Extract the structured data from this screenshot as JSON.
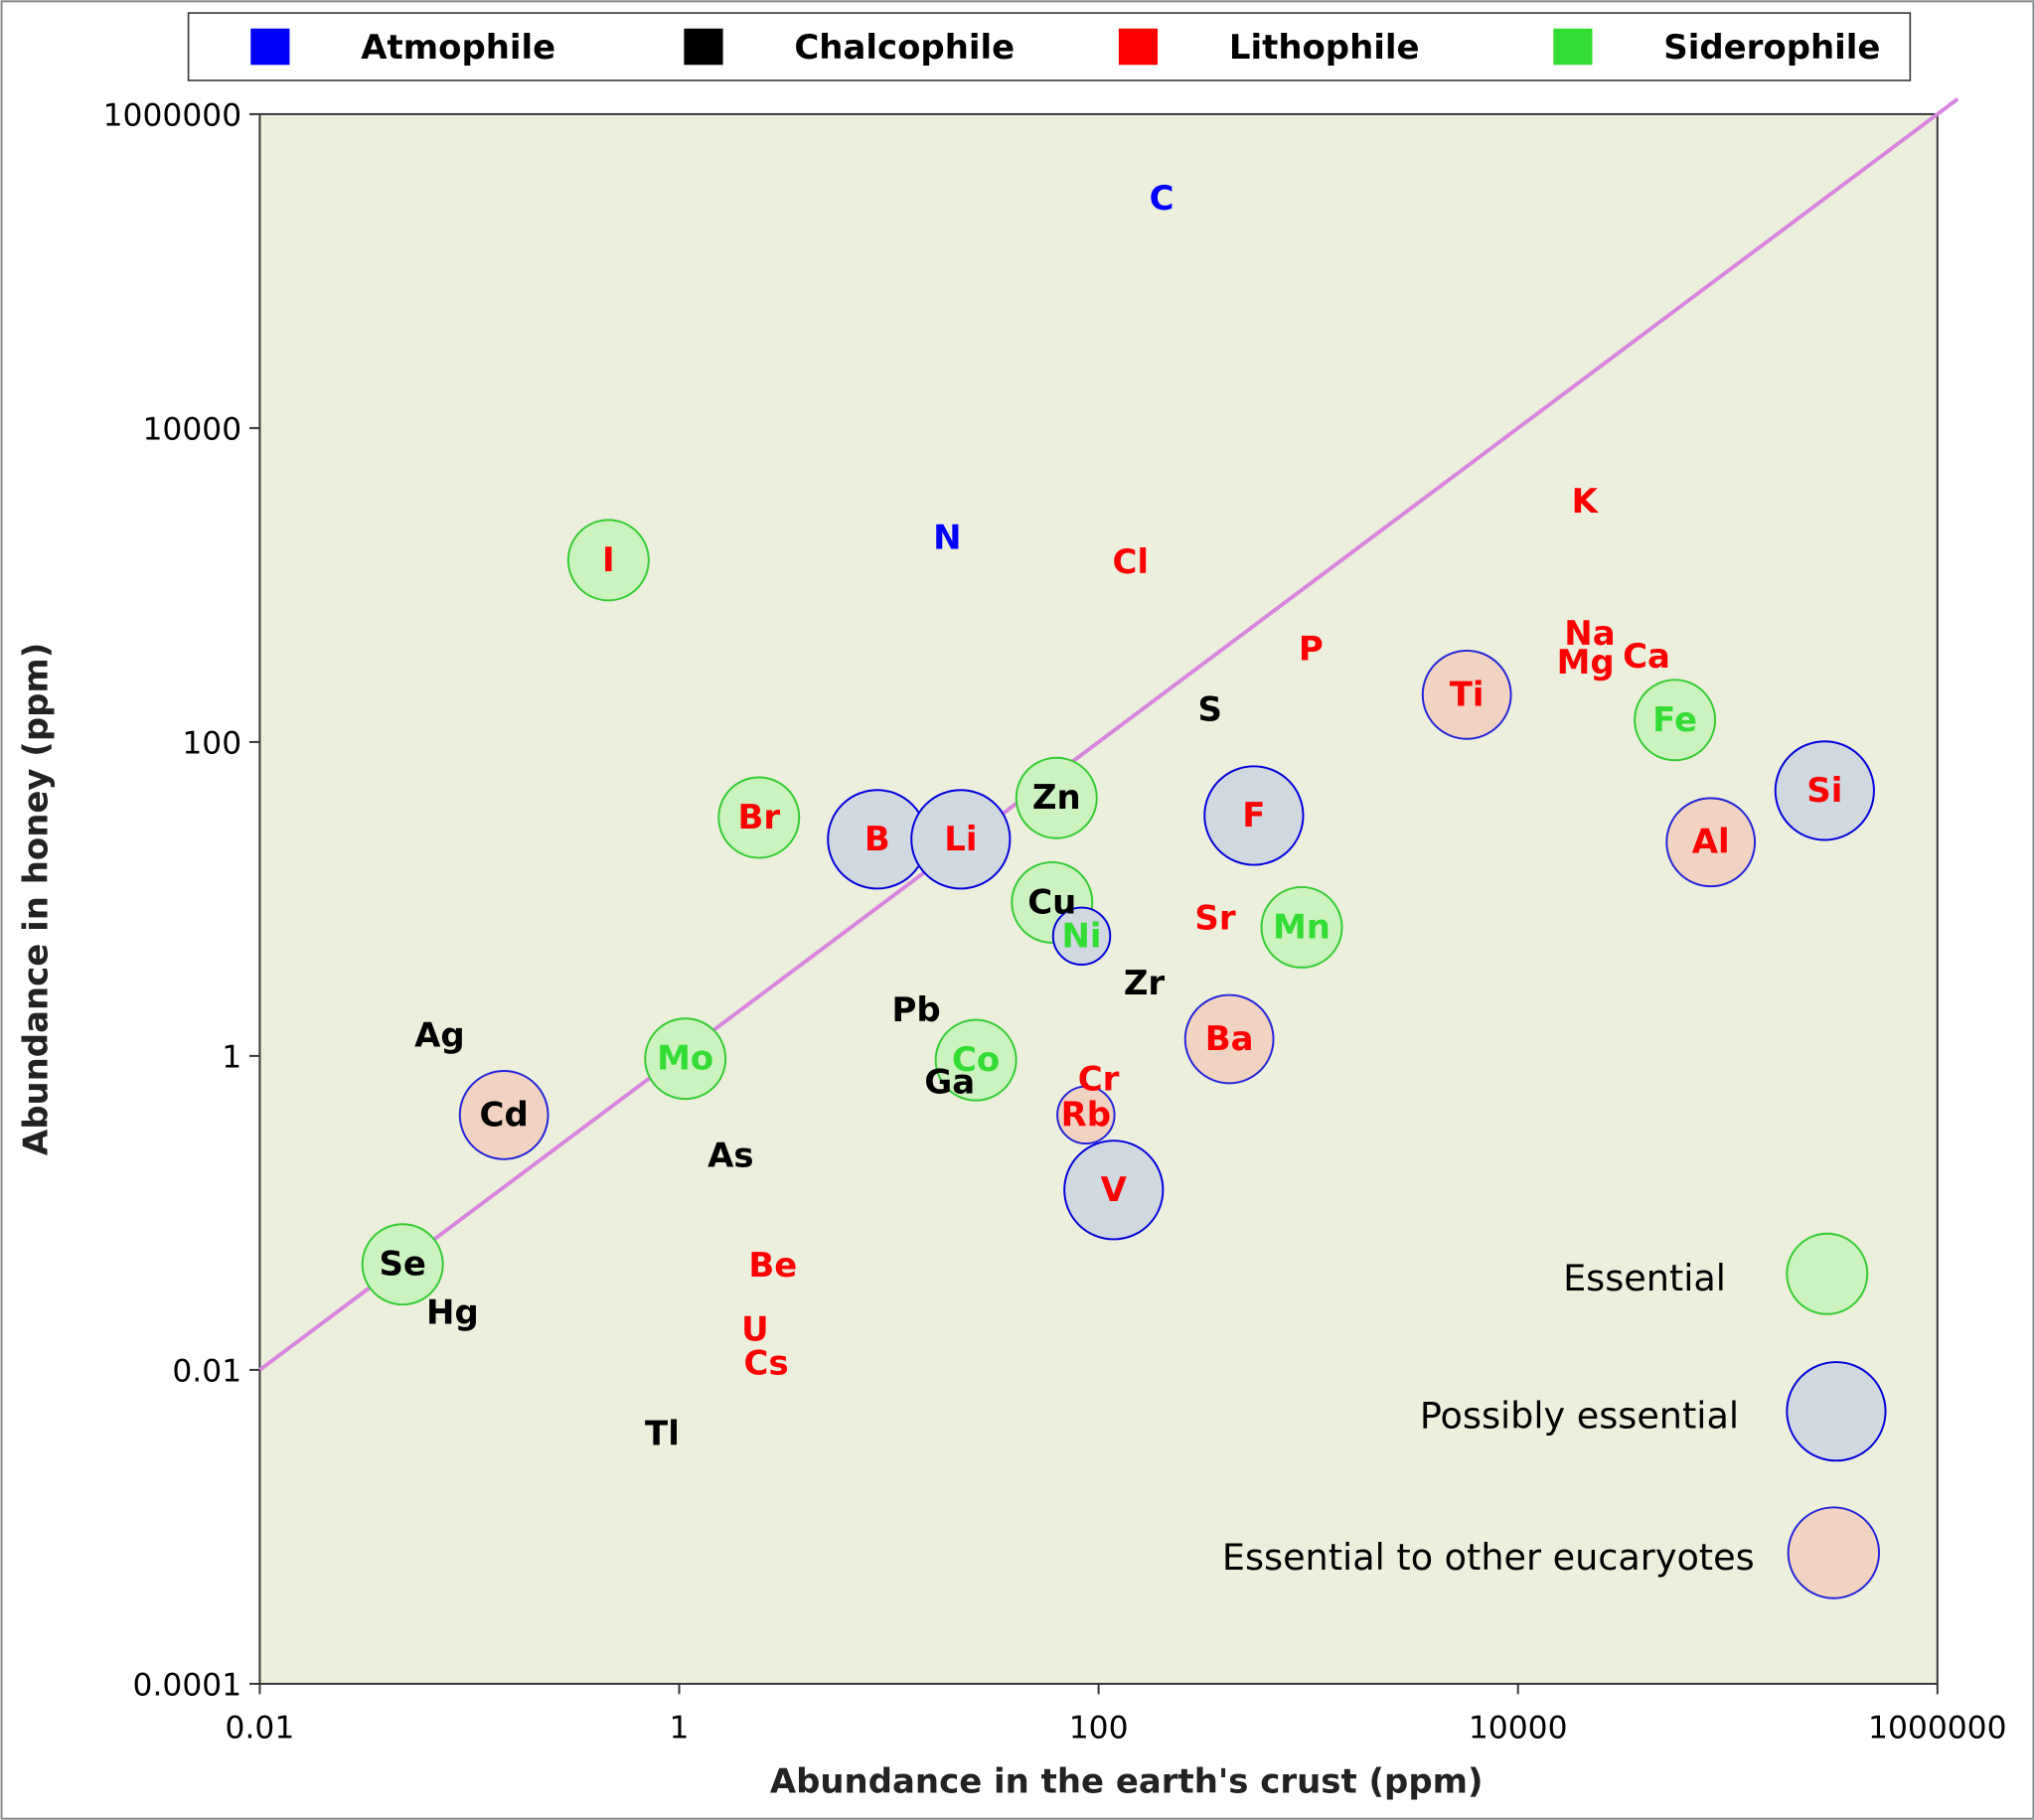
{
  "chart_data": {
    "type": "scatter",
    "xlabel": "Abundance in the earth's crust (ppm)",
    "ylabel": "Abundance in honey (ppm)",
    "x_scale": "log",
    "y_scale": "log",
    "xlim": [
      0.01,
      1000000
    ],
    "ylim": [
      0.0001,
      1000000
    ],
    "x_ticks": [
      "0.01",
      "1",
      "100",
      "10000",
      "1000000"
    ],
    "y_ticks": [
      "0.0001",
      "0.01",
      "1",
      "100",
      "10000",
      "1000000"
    ],
    "grid": false,
    "background_color": "#ecefdc",
    "reference_line": {
      "type": "y = x",
      "color": "#d985e0"
    },
    "groups_legend": {
      "placement": "top",
      "items": [
        {
          "name": "Atmophile",
          "color": "#0000ff"
        },
        {
          "name": "Chalcophile",
          "color": "#000000"
        },
        {
          "name": "Lithophile",
          "color": "#ff0000"
        },
        {
          "name": "Siderophile",
          "color": "#33dd33"
        }
      ]
    },
    "marker_legend": {
      "placement": "bottom-right",
      "items": [
        {
          "name": "Essential",
          "key": "essential",
          "fill": "#ccf2c0",
          "stroke": "#33cc33"
        },
        {
          "name": "Possibly essential",
          "key": "possibly",
          "fill": "#d0d8e0",
          "stroke": "#0000dd"
        },
        {
          "name": "Essential to other eucaryotes",
          "key": "other",
          "fill": "#f2d2c0",
          "stroke": "#2222dd"
        }
      ]
    },
    "points": [
      {
        "label": "C",
        "group": "Atmophile",
        "x": 200,
        "y": 290000,
        "marker": ""
      },
      {
        "label": "N",
        "group": "Atmophile",
        "x": 19,
        "y": 2000,
        "marker": ""
      },
      {
        "label": "Cl",
        "group": "Lithophile",
        "x": 142,
        "y": 1400,
        "marker": ""
      },
      {
        "label": "K",
        "group": "Lithophile",
        "x": 20800,
        "y": 3400,
        "marker": ""
      },
      {
        "label": "I",
        "group": "Lithophile",
        "x": 0.46,
        "y": 1440,
        "marker": "essential"
      },
      {
        "label": "P",
        "group": "Lithophile",
        "x": 1030,
        "y": 390,
        "marker": ""
      },
      {
        "label": "Na",
        "group": "Lithophile",
        "x": 22000,
        "y": 490,
        "marker": ""
      },
      {
        "label": "Mg",
        "group": "Lithophile",
        "x": 21000,
        "y": 320,
        "marker": ""
      },
      {
        "label": "Ca",
        "group": "Lithophile",
        "x": 41000,
        "y": 350,
        "marker": ""
      },
      {
        "label": "Ti",
        "group": "Lithophile",
        "x": 5700,
        "y": 200,
        "marker": "other"
      },
      {
        "label": "Fe",
        "group": "Siderophile",
        "x": 56000,
        "y": 138,
        "marker": "essential"
      },
      {
        "label": "S",
        "group": "Chalcophile",
        "x": 340,
        "y": 160,
        "marker": ""
      },
      {
        "label": "Si",
        "group": "Lithophile",
        "x": 290000,
        "y": 49,
        "marker": "possibly"
      },
      {
        "label": "Al",
        "group": "Lithophile",
        "x": 83000,
        "y": 23,
        "marker": "other"
      },
      {
        "label": "F",
        "group": "Lithophile",
        "x": 550,
        "y": 34,
        "marker": "possibly"
      },
      {
        "label": "Zn",
        "group": "Chalcophile",
        "x": 63,
        "y": 44,
        "marker": "essential"
      },
      {
        "label": "Br",
        "group": "Lithophile",
        "x": 2.4,
        "y": 33,
        "marker": "essential"
      },
      {
        "label": "B",
        "group": "Lithophile",
        "x": 8.8,
        "y": 24,
        "marker": "possibly"
      },
      {
        "label": "Li",
        "group": "Lithophile",
        "x": 22,
        "y": 24,
        "marker": "possibly"
      },
      {
        "label": "Cu",
        "group": "Chalcophile",
        "x": 60,
        "y": 9.5,
        "marker": "essential"
      },
      {
        "label": "Ni",
        "group": "Siderophile",
        "x": 83,
        "y": 5.8,
        "marker": "possibly",
        "small": true
      },
      {
        "label": "Sr",
        "group": "Lithophile",
        "x": 360,
        "y": 7.5,
        "marker": ""
      },
      {
        "label": "Mn",
        "group": "Siderophile",
        "x": 930,
        "y": 6.6,
        "marker": "essential"
      },
      {
        "label": "Zr",
        "group": "Chalcophile",
        "x": 165,
        "y": 2.9,
        "marker": ""
      },
      {
        "label": "Pb",
        "group": "Chalcophile",
        "x": 13.5,
        "y": 1.95,
        "marker": ""
      },
      {
        "label": "Ba",
        "group": "Lithophile",
        "x": 420,
        "y": 1.28,
        "marker": "other"
      },
      {
        "label": "Ag",
        "group": "Chalcophile",
        "x": 0.072,
        "y": 1.35,
        "marker": ""
      },
      {
        "label": "Mo",
        "group": "Siderophile",
        "x": 1.07,
        "y": 0.96,
        "marker": "essential"
      },
      {
        "label": "Co",
        "group": "Siderophile",
        "x": 26,
        "y": 0.94,
        "marker": "essential"
      },
      {
        "label": "Ga",
        "group": "Chalcophile",
        "x": 19.5,
        "y": 0.68,
        "marker": ""
      },
      {
        "label": "Cr",
        "group": "Lithophile",
        "x": 100,
        "y": 0.71,
        "marker": ""
      },
      {
        "label": "Cd",
        "group": "Chalcophile",
        "x": 0.146,
        "y": 0.42,
        "marker": "other"
      },
      {
        "label": "Rb",
        "group": "Lithophile",
        "x": 87,
        "y": 0.42,
        "marker": "other",
        "small": true
      },
      {
        "label": "As",
        "group": "Chalcophile",
        "x": 1.76,
        "y": 0.23,
        "marker": ""
      },
      {
        "label": "V",
        "group": "Lithophile",
        "x": 118,
        "y": 0.14,
        "marker": "possibly"
      },
      {
        "label": "Se",
        "group": "Chalcophile",
        "x": 0.048,
        "y": 0.047,
        "marker": "essential"
      },
      {
        "label": "Be",
        "group": "Lithophile",
        "x": 2.8,
        "y": 0.046,
        "marker": ""
      },
      {
        "label": "Hg",
        "group": "Chalcophile",
        "x": 0.083,
        "y": 0.023,
        "marker": ""
      },
      {
        "label": "U",
        "group": "Lithophile",
        "x": 2.3,
        "y": 0.018,
        "marker": ""
      },
      {
        "label": "Cs",
        "group": "Lithophile",
        "x": 2.6,
        "y": 0.011,
        "marker": ""
      },
      {
        "label": "Tl",
        "group": "Chalcophile",
        "x": 0.83,
        "y": 0.0039,
        "marker": ""
      }
    ]
  }
}
